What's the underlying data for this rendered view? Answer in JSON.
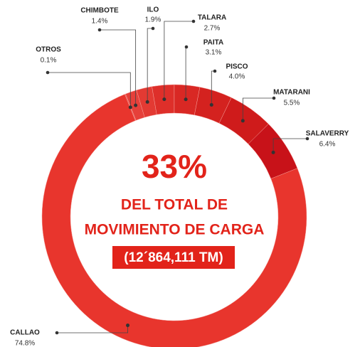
{
  "chart_data": {
    "type": "donut",
    "categories": [
      "OTROS",
      "CHIMBOTE",
      "ILO",
      "TALARA",
      "PAITA",
      "PISCO",
      "MATARANI",
      "SALAVERRY",
      "CALLAO"
    ],
    "values": [
      0.1,
      1.4,
      1.9,
      2.7,
      3.1,
      4.0,
      5.5,
      6.4,
      74.8
    ],
    "value_labels": [
      "0.1%",
      "1.4%",
      "1.9%",
      "2.7%",
      "3.1%",
      "4.0%",
      "5.5%",
      "6.4%",
      "74.8%"
    ],
    "colors": [
      "#e8473f",
      "#e6403a",
      "#e33a33",
      "#de2f2a",
      "#d92824",
      "#d4221f",
      "#cf1b1b",
      "#c81219",
      "#e8352d"
    ],
    "center_text": {
      "headline": "33%",
      "line1": "DEL TOTAL DE",
      "line2": "MOVIMIENTO DE CARGA",
      "box": "(12´864,111 TM)"
    }
  }
}
